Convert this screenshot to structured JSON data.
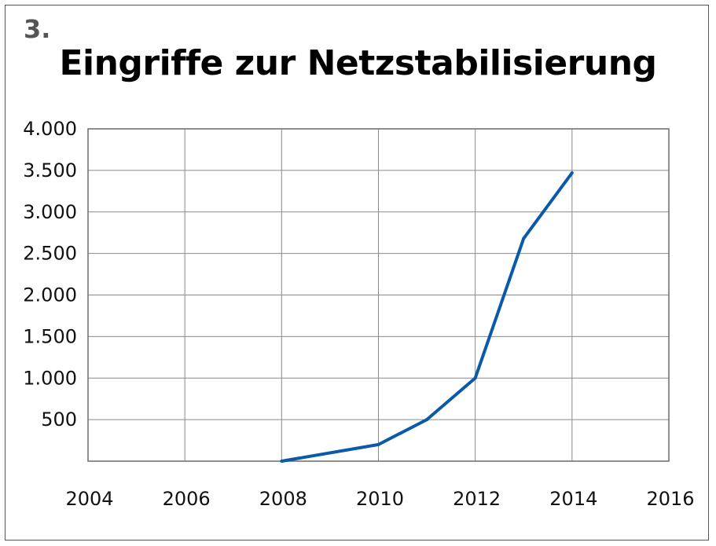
{
  "figure_number": "3.",
  "chart_data": {
    "type": "line",
    "title": "Eingriffe zur Netzstabilisierung",
    "xlabel": "",
    "ylabel": "",
    "x": [
      2008,
      2010,
      2011,
      2012,
      2013,
      2014
    ],
    "series": [
      {
        "values": [
          0,
          200,
          500,
          1000,
          2680,
          3470
        ]
      }
    ],
    "xlim": [
      2004,
      2016
    ],
    "ylim": [
      0,
      4000
    ],
    "xticks": [
      2004,
      2006,
      2008,
      2010,
      2012,
      2014,
      2016
    ],
    "xtick_labels": [
      "2004",
      "2006",
      "2008",
      "2010",
      "2012",
      "2014",
      "2016"
    ],
    "yticks": [
      500,
      1000,
      1500,
      2000,
      2500,
      3000,
      3500,
      4000
    ],
    "ytick_labels": [
      "500",
      "1.000",
      "1.500",
      "2.000",
      "2.500",
      "3.000",
      "3.500",
      "4.000"
    ],
    "grid": true,
    "line_color": "#0b5aa8"
  }
}
